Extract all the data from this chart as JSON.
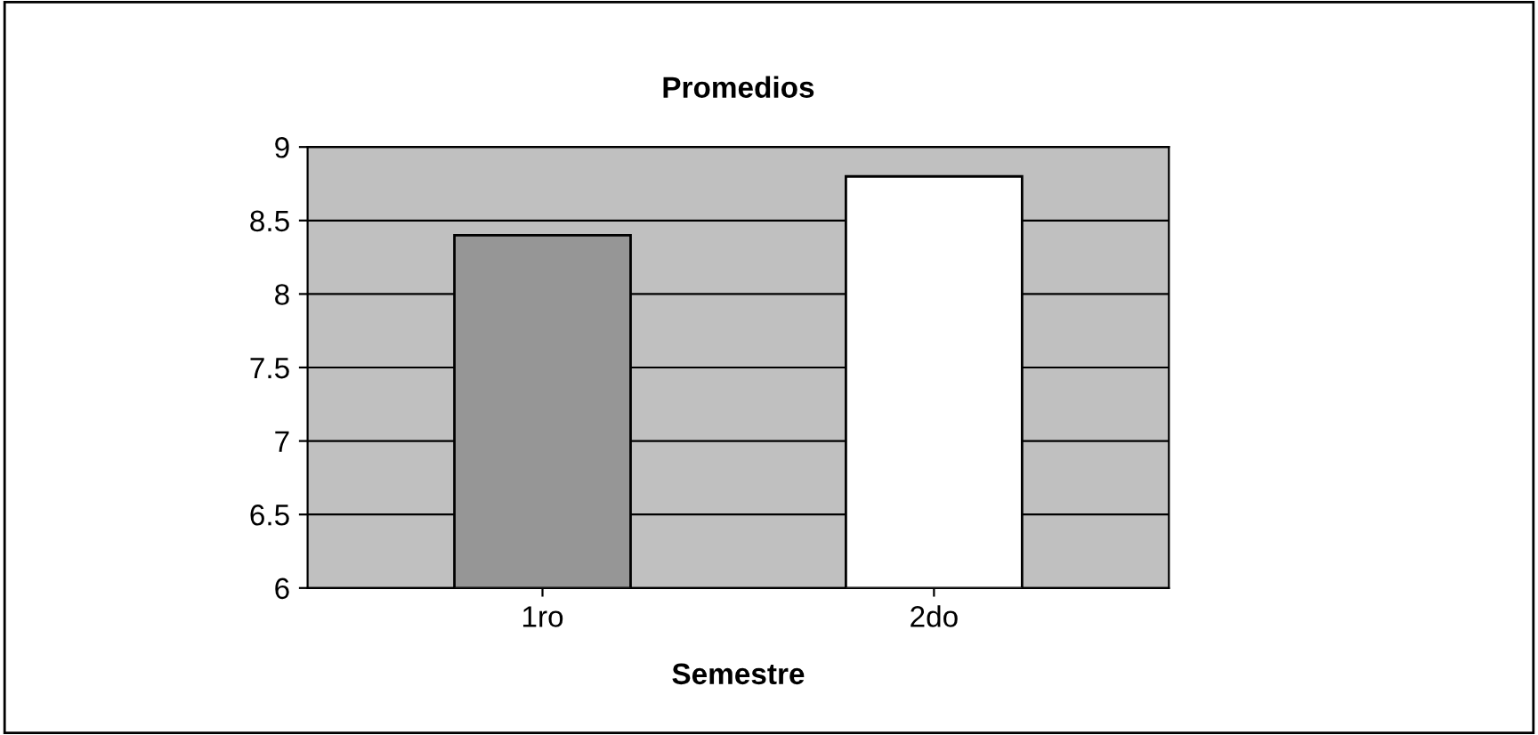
{
  "chart_data": {
    "type": "bar",
    "title": "Promedios",
    "xlabel": "Semestre",
    "categories": [
      "1ro",
      "2do"
    ],
    "values": [
      8.4,
      8.8
    ],
    "colors": [
      "#969696",
      "#ffffff"
    ],
    "ylim": [
      6,
      9
    ],
    "yticks": [
      6,
      6.5,
      7,
      7.5,
      8,
      8.5,
      9
    ],
    "grid": "y"
  }
}
